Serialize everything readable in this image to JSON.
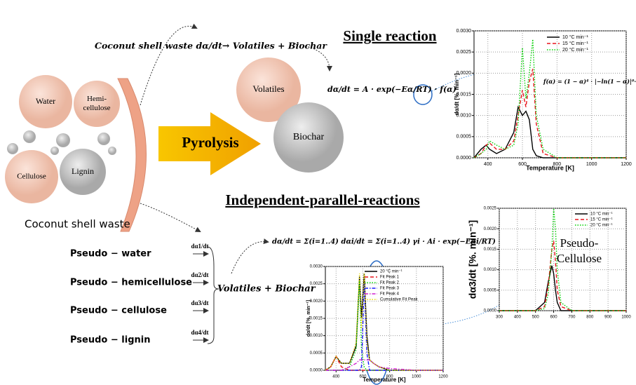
{
  "feedstock": "Coconut shell waste",
  "nodes": [
    {
      "label": [
        "Water"
      ]
    },
    {
      "label": [
        "Hemi-",
        "cellulose"
      ]
    },
    {
      "label": [
        "Cellulose"
      ]
    },
    {
      "label": [
        "Lignin"
      ]
    },
    {
      "label": [
        "Volatiles"
      ]
    },
    {
      "label": [
        "Biochar"
      ]
    }
  ],
  "process": "Pyrolysis",
  "single": {
    "title": "Single reaction",
    "reaction": "Coconut shell waste dα/dt→ Volatiles + Biochar",
    "equation": "dα/dt = A · exp(−Eα/RT) · f(α)"
  },
  "parallel": {
    "title": "Independent-parallel-reactions",
    "equation": "dα/dt = Σ(i=1..4) dαi/dt = Σ(i=1..4) γi · Ai · exp(−Eαi/RT) · f(α)",
    "pseudo": [
      "Pseudo − water",
      "Pseudo − hemicellulose",
      "Pseudo − cellulose",
      "Pseudo − lignin"
    ],
    "steps": [
      "dα1/dt",
      "dα2/dt",
      "dα3/dt",
      "dα4/dt"
    ],
    "products": "Volatiles + Biochar"
  },
  "chart_data": [
    {
      "type": "line",
      "xlabel": "Temperature [K]",
      "ylabel": "dα/dt [%. min⁻¹]",
      "annotation": "f(α) = (1 − α)⁴ · |−ln(1 − α)|⁰·⁵³",
      "grid": true,
      "xlim": [
        320,
        1200
      ],
      "ylim": [
        0,
        0.003
      ],
      "xticks": [
        400,
        600,
        800,
        1000,
        1200
      ],
      "yticks": [
        {
          "value": 0,
          "label": "0.0000"
        },
        {
          "value": 0.0005,
          "label": "0.0005"
        },
        {
          "value": 0.001,
          "label": "0.0010"
        },
        {
          "value": 0.0015,
          "label": "0.0015"
        },
        {
          "value": 0.002,
          "label": "0.0020"
        },
        {
          "value": 0.0025,
          "label": "0.0025"
        },
        {
          "value": 0.003,
          "label": "0.0030"
        }
      ],
      "x": [
        320,
        360,
        390,
        410,
        450,
        500,
        550,
        575,
        600,
        620,
        640,
        660,
        680,
        720,
        800,
        1000,
        1200
      ],
      "series": [
        {
          "name": "10 °C min⁻¹",
          "color": "#000000",
          "style": "solid",
          "values": [
            0,
            0.0002,
            0.0003,
            0.0002,
            0.0001,
            0.0002,
            0.0006,
            0.0012,
            0.001,
            0.0011,
            0.0009,
            0.0002,
            5e-05,
            0,
            0,
            0,
            0
          ]
        },
        {
          "name": "15 °C min⁻¹",
          "color": "#e8141c",
          "style": "dash",
          "values": [
            0,
            0.0001,
            0.0003,
            0.00035,
            0.0002,
            0.0002,
            0.0004,
            0.001,
            0.0016,
            0.0012,
            0.0018,
            0.0021,
            0.0008,
            0.0001,
            0,
            0,
            0
          ]
        },
        {
          "name": "20 °C min⁻¹",
          "color": "#00d000",
          "style": "dot",
          "values": [
            0,
            0.0001,
            0.0002,
            0.0004,
            0.0003,
            0.0002,
            0.0003,
            0.0008,
            0.0026,
            0.0014,
            0.002,
            0.0028,
            0.001,
            0.0002,
            0,
            0,
            0
          ]
        }
      ]
    },
    {
      "type": "line",
      "xlabel": "Temperature [K]",
      "ylabel": "dα/dt [%. min⁻¹]",
      "grid": true,
      "xlim": [
        320,
        1200
      ],
      "ylim": [
        0,
        0.003
      ],
      "xticks": [
        400,
        600,
        800,
        1000,
        1200
      ],
      "yticks": [
        {
          "value": 0,
          "label": "0.0000"
        },
        {
          "value": 0.0005,
          "label": "0.0005"
        },
        {
          "value": 0.001,
          "label": "0.0010"
        },
        {
          "value": 0.0015,
          "label": "0.0015"
        },
        {
          "value": 0.002,
          "label": "0.0020"
        },
        {
          "value": 0.0025,
          "label": "0.0025"
        },
        {
          "value": 0.003,
          "label": "0.0030"
        }
      ],
      "x": [
        320,
        360,
        400,
        440,
        500,
        550,
        575,
        590,
        610,
        630,
        650,
        680,
        720,
        800,
        1000,
        1200
      ],
      "series": [
        {
          "name": "20 °C min⁻¹",
          "color": "#000000",
          "style": "solid",
          "values": [
            0,
            0.0001,
            0.0004,
            0.0002,
            0.0002,
            0.0007,
            0.0027,
            0.0015,
            0.0028,
            0.001,
            0.0003,
            0.0002,
            0.0001,
            0,
            0,
            0
          ]
        },
        {
          "name": "Fit Peak 1",
          "color": "#e8141c",
          "style": "dash",
          "values": [
            0,
            0.0001,
            0.0004,
            0.0001,
            0,
            0,
            0,
            0,
            0,
            0,
            0,
            0,
            0,
            0,
            0,
            0
          ]
        },
        {
          "name": "Fit Peak 2",
          "color": "#00d000",
          "style": "dot",
          "values": [
            0,
            0,
            0,
            0,
            0.0001,
            0.0006,
            0.0026,
            0.0006,
            0.0001,
            0,
            0,
            0,
            0,
            0,
            0,
            0
          ]
        },
        {
          "name": "Fit Peak 3",
          "color": "#1a1aff",
          "style": "dashdot",
          "values": [
            0,
            0,
            0,
            0,
            0,
            0,
            0,
            0.0001,
            0.0025,
            0.0005,
            0,
            0,
            0,
            0,
            0,
            0
          ]
        },
        {
          "name": "Fit Peak 4",
          "color": "#d020d0",
          "style": "dashdot",
          "values": [
            0,
            0,
            0,
            0,
            0.0001,
            0.0002,
            0.0003,
            0.0003,
            0.0003,
            0.0003,
            0.0003,
            0.0002,
            0.0001,
            5e-05,
            0,
            0
          ]
        },
        {
          "name": "Cumulative Fit Peak",
          "color": "#e8d800",
          "style": "dot",
          "values": [
            0,
            0.0001,
            0.0004,
            0.0002,
            0.0002,
            0.0008,
            0.0028,
            0.0012,
            0.0028,
            0.0008,
            0.0003,
            0.0002,
            0.0001,
            0,
            0,
            0
          ]
        }
      ]
    },
    {
      "type": "line",
      "ylabel": "dα3/dt [%. min⁻¹]",
      "annotation": [
        "Pseudo-",
        "Cellulose"
      ],
      "grid": true,
      "xlim": [
        300,
        1000
      ],
      "ylim": [
        0,
        0.0025
      ],
      "xticks": [
        300,
        400,
        500,
        600,
        700,
        800,
        900,
        1000
      ],
      "yticks": [
        {
          "value": 0,
          "label": "0.0000"
        },
        {
          "value": 0.0005,
          "label": "0.0005"
        },
        {
          "value": 0.001,
          "label": "0.0010"
        },
        {
          "value": 0.0015,
          "label": "0.0015"
        },
        {
          "value": 0.002,
          "label": "0.0020"
        },
        {
          "value": 0.0025,
          "label": "0.0025"
        }
      ],
      "x": [
        300,
        400,
        500,
        550,
        570,
        590,
        600,
        610,
        620,
        640,
        700,
        800,
        1000
      ],
      "series": [
        {
          "name": "10 °C min⁻¹",
          "color": "#000000",
          "style": "solid",
          "values": [
            0,
            0,
            0,
            0.0002,
            0.0007,
            0.0011,
            0.0009,
            0.0005,
            0.0002,
            0,
            0,
            0,
            0
          ]
        },
        {
          "name": "15 °C min⁻¹",
          "color": "#e8141c",
          "style": "dash",
          "values": [
            0,
            0,
            0,
            0.0001,
            0.0006,
            0.0015,
            0.0017,
            0.0012,
            0.0005,
            0.0001,
            0,
            0,
            0
          ]
        },
        {
          "name": "20 °C min⁻¹",
          "color": "#00d000",
          "style": "dot",
          "values": [
            0,
            0,
            0,
            5e-05,
            0.0004,
            0.0015,
            0.0025,
            0.002,
            0.001,
            0.0002,
            0,
            0,
            0
          ]
        }
      ]
    }
  ]
}
